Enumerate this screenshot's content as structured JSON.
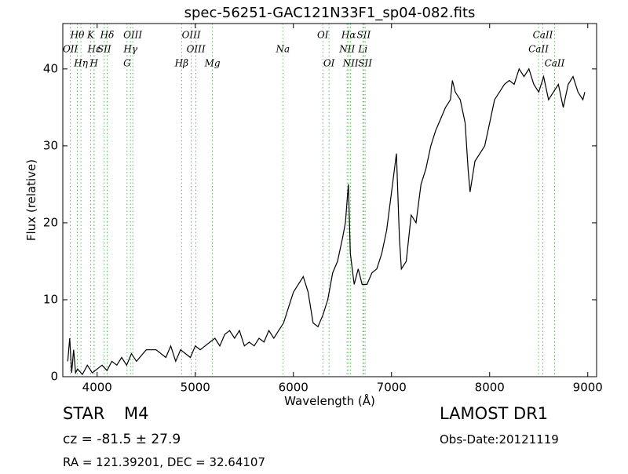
{
  "chart_data": {
    "type": "line",
    "title": "spec-56251-GAC121N33F1_sp04-082.fits",
    "x_label": "Wavelength (Å)",
    "y_label": "Flux (relative)",
    "xlim": [
      3650,
      9090
    ],
    "ylim": [
      0,
      45.9
    ],
    "xticks": [
      4000,
      5000,
      6000,
      7000,
      8000,
      9000
    ],
    "yticks": [
      0,
      10,
      20,
      30,
      40
    ],
    "grid": false,
    "series": [
      {
        "color": "#000000",
        "x": [
          3700,
          3720,
          3740,
          3760,
          3780,
          3800,
          3850,
          3900,
          3950,
          4000,
          4050,
          4100,
          4150,
          4200,
          4250,
          4300,
          4350,
          4400,
          4500,
          4600,
          4700,
          4750,
          4800,
          4850,
          4900,
          4950,
          5000,
          5050,
          5100,
          5150,
          5200,
          5250,
          5300,
          5350,
          5400,
          5450,
          5500,
          5550,
          5600,
          5650,
          5700,
          5750,
          5800,
          5850,
          5900,
          5950,
          6000,
          6050,
          6100,
          6150,
          6200,
          6250,
          6300,
          6350,
          6400,
          6450,
          6500,
          6530,
          6560,
          6580,
          6620,
          6660,
          6700,
          6750,
          6800,
          6850,
          6900,
          6950,
          7000,
          7050,
          7080,
          7100,
          7150,
          7200,
          7250,
          7300,
          7350,
          7400,
          7450,
          7500,
          7550,
          7600,
          7620,
          7650,
          7700,
          7750,
          7780,
          7800,
          7850,
          7900,
          7950,
          8000,
          8050,
          8100,
          8150,
          8200,
          8250,
          8300,
          8350,
          8400,
          8450,
          8500,
          8550,
          8600,
          8650,
          8700,
          8750,
          8800,
          8850,
          8900,
          8950,
          8970
        ],
        "values": [
          2,
          5,
          0.5,
          3.5,
          0.5,
          1,
          0.3,
          1.5,
          0.5,
          1,
          1.5,
          0.8,
          2,
          1.5,
          2.5,
          1.5,
          3,
          2,
          3.5,
          3.5,
          2.5,
          4,
          2,
          3.5,
          3,
          2.5,
          4,
          3.5,
          4,
          4.5,
          5,
          4,
          5.5,
          6,
          5,
          6,
          4,
          4.5,
          4,
          5,
          4.5,
          6,
          5,
          6,
          7,
          9,
          11,
          12,
          13,
          11,
          7,
          6.5,
          8,
          10,
          13.5,
          15,
          18,
          20,
          25,
          16,
          12,
          14,
          12,
          12,
          13.5,
          14,
          16,
          19,
          24,
          29,
          18,
          14,
          15,
          21,
          20,
          25,
          27,
          30,
          32,
          33.5,
          35,
          36,
          38.5,
          37,
          36,
          33,
          27,
          24,
          28,
          29,
          30,
          33,
          36,
          37,
          38,
          38.5,
          38,
          40,
          39,
          40,
          38,
          37,
          39,
          36,
          37,
          38,
          35,
          38,
          39,
          37,
          36,
          37
        ]
      }
    ],
    "line_markers": {
      "color": "#5cb85c",
      "x": [
        3798,
        3727,
        3835,
        3934,
        3970,
        3968,
        4102,
        4072,
        4305,
        4363,
        4340,
        4861,
        4959,
        5007,
        5175,
        6300,
        5893,
        6363,
        6563,
        6548,
        6583,
        6717,
        6708,
        6731,
        8542,
        8498,
        8662
      ],
      "labels": [
        "Hθ",
        "OII",
        "Hη",
        "K",
        "Hε",
        "H",
        "Hδ",
        "SII",
        "G",
        "OIII",
        "Hγ",
        "Hβ",
        "OIII",
        "OIII",
        "Mg",
        "OI",
        "Na",
        "OI",
        "Hα",
        "NII",
        "NII",
        "SII",
        "Li",
        "SII",
        "CaII",
        "CaII",
        "CaII"
      ]
    }
  },
  "footer": {
    "object_class": "STAR",
    "subclass": "M4",
    "cz": "cz = -81.5 ± 27.9",
    "coords": "RA = 121.39201, DEC = 32.64107",
    "survey": "LAMOST DR1",
    "obs_date": "Obs-Date:20121119"
  }
}
